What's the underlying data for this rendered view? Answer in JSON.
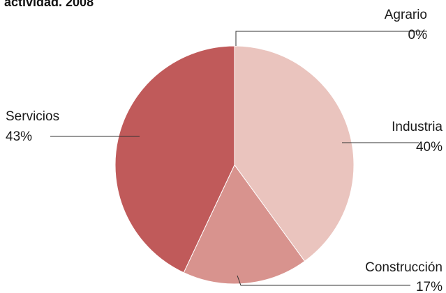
{
  "chart_data": {
    "type": "pie",
    "title": "actividad. 2008",
    "slices": [
      {
        "label": "Agrario",
        "value": 0,
        "display": "0%",
        "color": "#c45a5a"
      },
      {
        "label": "Industria",
        "value": 40,
        "display": "40%",
        "color": "#eac4be"
      },
      {
        "label": "Construcción",
        "value": 17,
        "display": "17%",
        "color": "#d8938e"
      },
      {
        "label": "Servicios",
        "value": 43,
        "display": "43%",
        "color": "#c05a5a"
      }
    ]
  }
}
